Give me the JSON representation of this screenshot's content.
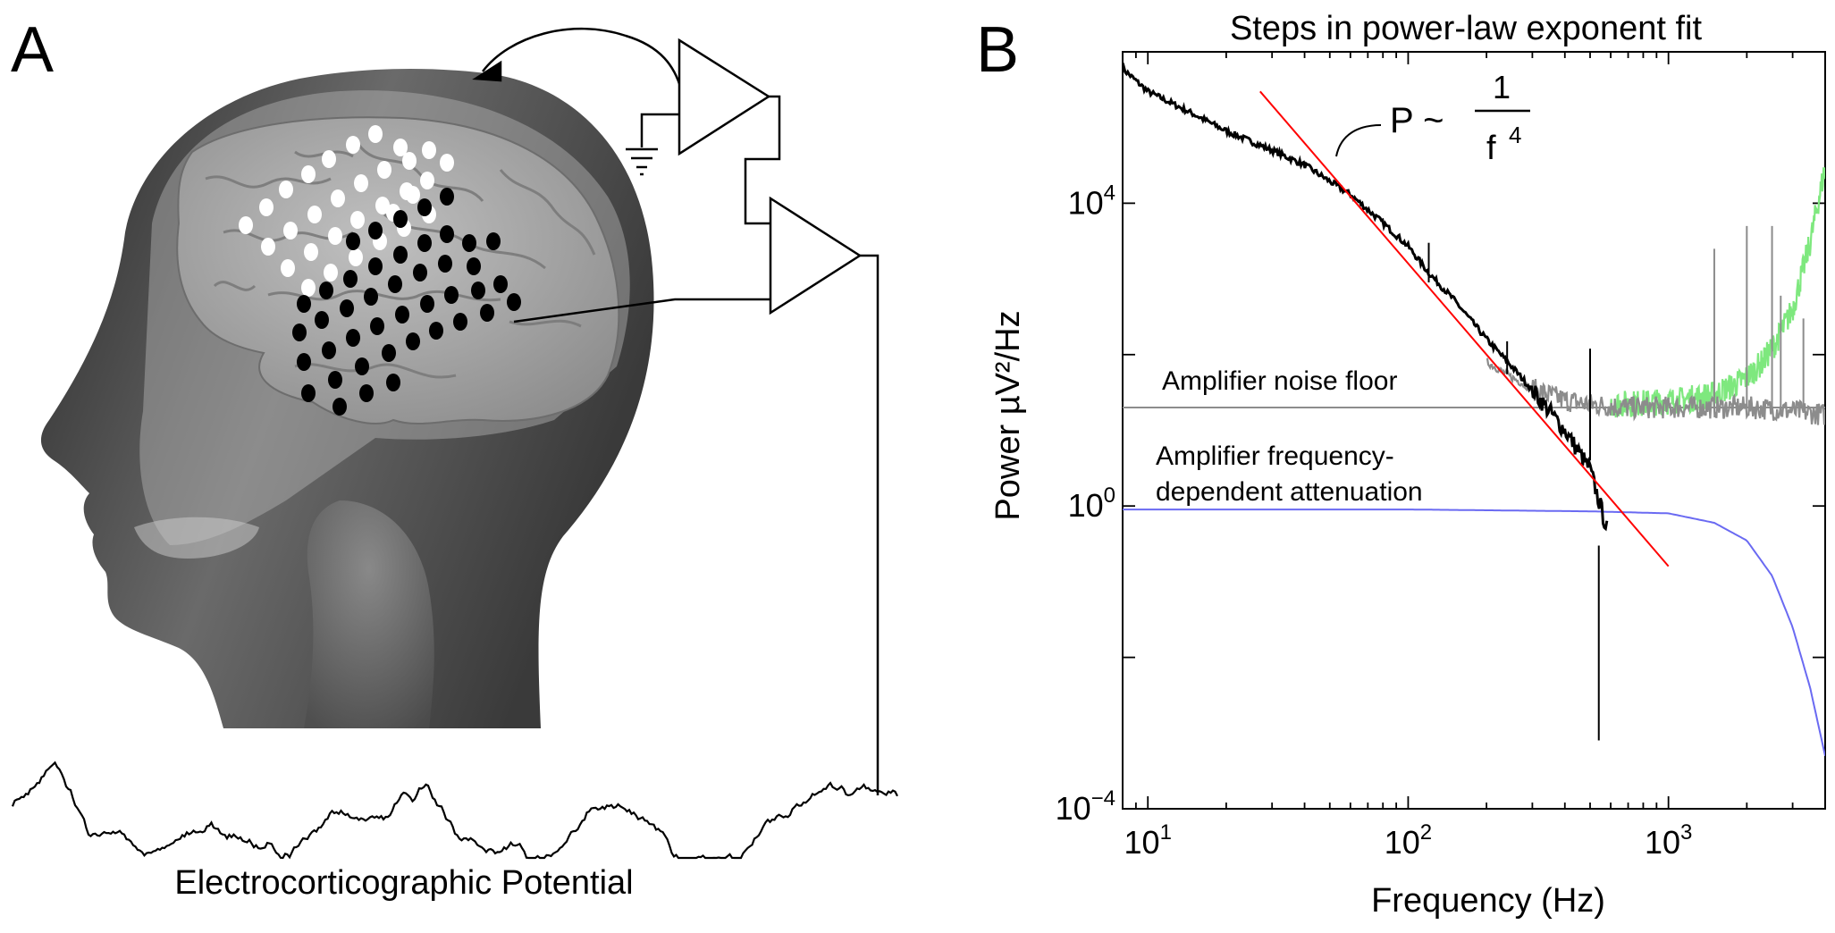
{
  "panel_a": {
    "letter": "A",
    "signal_label": "Electrocorticographic Potential"
  },
  "panel_b": {
    "letter": "B",
    "formula": {
      "p": "P ~",
      "num": "1",
      "den": "f",
      "exp": "4"
    },
    "noise_floor_label": "Amplifier noise floor",
    "attenuation_label_1": "Amplifier frequency-",
    "attenuation_label_2": "dependent attenuation"
  },
  "colors": {
    "raw_spectrum": "#000000",
    "fit_line": "#ff0000",
    "noise_floor": "#8c8c8c",
    "attenuation": "#6a6af2",
    "corrected": "#7ee87e",
    "skull": "#8a8a8a",
    "brain": "#a9a9a9"
  },
  "chart_data": {
    "type": "line",
    "title": "Steps in power-law exponent fit",
    "xlabel": "Frequency (Hz)",
    "ylabel": "Power µV²/Hz",
    "x_scale": "log",
    "y_scale": "log",
    "xlim": [
      8,
      4000
    ],
    "ylim": [
      0.0001,
      1000000
    ],
    "x_ticks": [
      {
        "value": 10,
        "base": "10",
        "exp": "1"
      },
      {
        "value": 100,
        "base": "10",
        "exp": "2"
      },
      {
        "value": 1000,
        "base": "10",
        "exp": "3"
      }
    ],
    "y_ticks": [
      {
        "value": 0.0001,
        "base": "10",
        "exp": "−4"
      },
      {
        "value": 1,
        "base": "10",
        "exp": "0"
      },
      {
        "value": 10000,
        "base": "10",
        "exp": "4"
      }
    ],
    "series": [
      {
        "key": "raw",
        "x": [
          8,
          10,
          15,
          20,
          30,
          40,
          60,
          80,
          100,
          120,
          150,
          200,
          250,
          300,
          400,
          500,
          580
        ],
        "y": [
          600000,
          300000,
          150000,
          90000,
          50000,
          32000,
          13000,
          5500,
          2700,
          1200,
          530,
          160,
          70,
          34,
          10,
          3,
          0.5
        ]
      },
      {
        "key": "fit",
        "x": [
          27,
          1000
        ],
        "y": [
          300000,
          0.16
        ]
      },
      {
        "key": "noise",
        "x": [
          8,
          4000
        ],
        "y": [
          20,
          20
        ]
      },
      {
        "key": "attenuation",
        "x": [
          8,
          100,
          500,
          1000,
          1500,
          2000,
          2500,
          3000,
          3500,
          4000
        ],
        "y": [
          0.9,
          0.9,
          0.85,
          0.8,
          0.6,
          0.35,
          0.12,
          0.025,
          0.004,
          0.0005
        ]
      },
      {
        "key": "observed",
        "x": [
          200,
          250,
          300,
          400,
          500,
          700,
          1000,
          1500,
          2000,
          2500,
          3000,
          3500,
          4000
        ],
        "y": [
          80,
          50,
          35,
          25,
          22,
          20,
          20,
          20,
          20,
          19,
          18,
          17,
          16
        ]
      },
      {
        "key": "corrected",
        "x": [
          600,
          800,
          1000,
          1200,
          1500,
          1800,
          2000,
          2300,
          2600,
          3000,
          3500,
          4000
        ],
        "y": [
          22,
          23,
          24,
          26,
          30,
          40,
          50,
          80,
          150,
          400,
          3000,
          30000
        ]
      }
    ]
  }
}
